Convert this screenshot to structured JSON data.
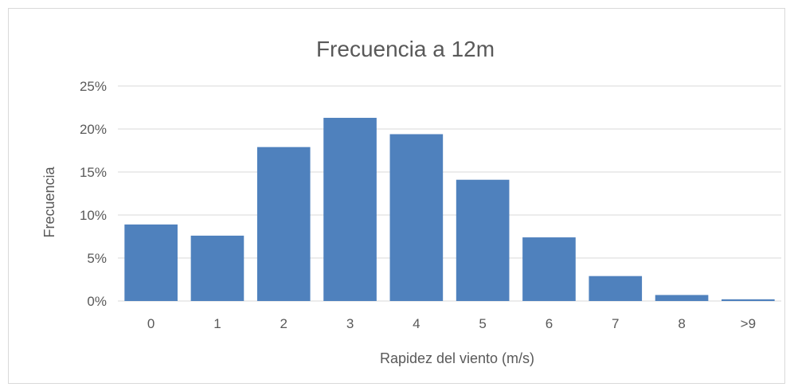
{
  "chart_data": {
    "type": "bar",
    "title": "Frecuencia a 12m",
    "xlabel": "Rapidez del viento (m/s)",
    "ylabel": "Frecuencia",
    "categories": [
      "0",
      "1",
      "2",
      "3",
      "4",
      "5",
      "6",
      "7",
      "8",
      ">9"
    ],
    "values": [
      8.9,
      7.6,
      17.9,
      21.3,
      19.4,
      14.1,
      7.4,
      2.9,
      0.7,
      0.2
    ],
    "ylim": [
      0,
      25
    ],
    "yticks": [
      0,
      5,
      10,
      15,
      20,
      25
    ],
    "ytick_labels": [
      "0%",
      "5%",
      "10%",
      "15%",
      "20%",
      "25%"
    ],
    "grid": true,
    "legend": "none",
    "bar_color": "#4f81bd",
    "grid_color": "#d9d9d9"
  }
}
